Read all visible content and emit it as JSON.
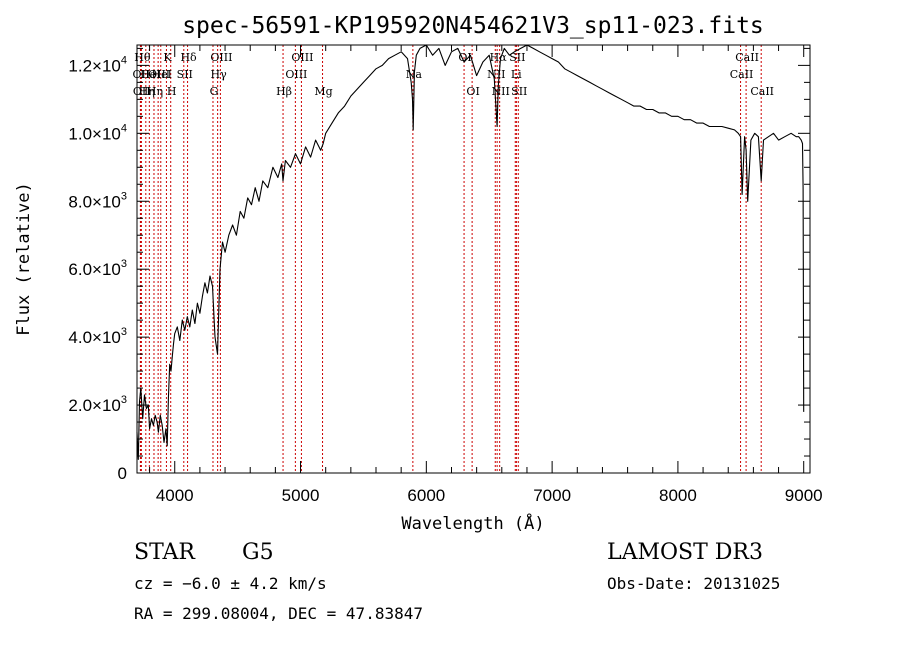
{
  "chart_data": {
    "type": "line",
    "title": "spec-56591-KP195920N454621V3_sp11-023.fits",
    "xlabel": "Wavelength (Å)",
    "ylabel": "Flux (relative)",
    "xlim": [
      3700,
      9050
    ],
    "ylim": [
      0,
      12600
    ],
    "x_ticks": [
      {
        "value": 4000,
        "label": "4000"
      },
      {
        "value": 5000,
        "label": "5000"
      },
      {
        "value": 6000,
        "label": "6000"
      },
      {
        "value": 7000,
        "label": "7000"
      },
      {
        "value": 8000,
        "label": "8000"
      },
      {
        "value": 9000,
        "label": "9000"
      }
    ],
    "y_ticks": [
      {
        "value": 0,
        "mant": "0",
        "exp": ""
      },
      {
        "value": 2000,
        "mant": "2.0×10",
        "exp": "3"
      },
      {
        "value": 4000,
        "mant": "4.0×10",
        "exp": "3"
      },
      {
        "value": 6000,
        "mant": "6.0×10",
        "exp": "3"
      },
      {
        "value": 8000,
        "mant": "8.0×10",
        "exp": "3"
      },
      {
        "value": 10000,
        "mant": "1.0×10",
        "exp": "4"
      },
      {
        "value": 12000,
        "mant": "1.2×10",
        "exp": "4"
      }
    ],
    "series": [
      {
        "name": "flux",
        "x": [
          3700,
          3710,
          3720,
          3730,
          3745,
          3760,
          3775,
          3790,
          3800,
          3815,
          3830,
          3845,
          3860,
          3870,
          3885,
          3900,
          3915,
          3930,
          3940,
          3950,
          3960,
          3970,
          3980,
          3990,
          4000,
          4020,
          4040,
          4060,
          4080,
          4100,
          4120,
          4140,
          4160,
          4180,
          4200,
          4220,
          4240,
          4260,
          4280,
          4300,
          4320,
          4340,
          4360,
          4380,
          4400,
          4430,
          4460,
          4490,
          4520,
          4550,
          4580,
          4610,
          4640,
          4670,
          4700,
          4740,
          4780,
          4820,
          4850,
          4861,
          4880,
          4920,
          4960,
          5000,
          5040,
          5080,
          5120,
          5160,
          5180,
          5200,
          5250,
          5300,
          5350,
          5400,
          5450,
          5500,
          5550,
          5600,
          5650,
          5700,
          5750,
          5800,
          5850,
          5880,
          5890,
          5896,
          5905,
          5920,
          5950,
          6000,
          6050,
          6100,
          6150,
          6200,
          6250,
          6300,
          6350,
          6400,
          6450,
          6500,
          6540,
          6555,
          6563,
          6572,
          6590,
          6620,
          6660,
          6700,
          6750,
          6800,
          6850,
          6900,
          6950,
          7000,
          7050,
          7100,
          7150,
          7200,
          7250,
          7300,
          7350,
          7400,
          7450,
          7500,
          7550,
          7600,
          7650,
          7700,
          7750,
          7800,
          7850,
          7900,
          7950,
          8000,
          8050,
          8100,
          8150,
          8200,
          8250,
          8300,
          8350,
          8400,
          8450,
          8480,
          8498,
          8510,
          8530,
          8542,
          8555,
          8580,
          8610,
          8640,
          8662,
          8680,
          8720,
          8760,
          8800,
          8850,
          8900,
          8940,
          8960,
          8980,
          8990,
          8995,
          9000
        ],
        "y": [
          1200,
          400,
          2100,
          2500,
          1600,
          2300,
          1900,
          2000,
          1300,
          1600,
          1400,
          1700,
          1500,
          1200,
          1700,
          1400,
          900,
          1300,
          800,
          2200,
          3200,
          3000,
          3400,
          3800,
          4100,
          4300,
          3900,
          4500,
          4200,
          4600,
          4300,
          4800,
          4400,
          5000,
          4700,
          5200,
          5600,
          5300,
          5800,
          5500,
          4000,
          3500,
          6000,
          6800,
          6500,
          7000,
          7300,
          7000,
          7700,
          7500,
          8100,
          7900,
          8400,
          8000,
          8600,
          8400,
          9000,
          8700,
          9100,
          8600,
          9200,
          9000,
          9400,
          9100,
          9600,
          9300,
          9800,
          9500,
          9700,
          10000,
          10300,
          10600,
          10800,
          11100,
          11300,
          11500,
          11700,
          11900,
          12000,
          12200,
          12300,
          12400,
          12200,
          11500,
          11000,
          10100,
          11800,
          12300,
          12500,
          12600,
          12300,
          12500,
          12000,
          12400,
          12500,
          12100,
          12300,
          11700,
          12100,
          12300,
          11600,
          10700,
          10200,
          11400,
          12200,
          12500,
          12300,
          12400,
          12500,
          12600,
          12500,
          12400,
          12300,
          12200,
          12100,
          11900,
          11800,
          11700,
          11600,
          11500,
          11400,
          11300,
          11200,
          11100,
          11000,
          10900,
          10800,
          10800,
          10700,
          10700,
          10600,
          10600,
          10500,
          10500,
          10400,
          10400,
          10300,
          10300,
          10200,
          10200,
          10200,
          10150,
          10100,
          10000,
          9900,
          8200,
          9900,
          9500,
          8000,
          9800,
          10000,
          9900,
          8600,
          9800,
          9900,
          10000,
          9800,
          9900,
          10000,
          9900,
          9900,
          9800,
          9700,
          8400,
          1800
        ]
      }
    ],
    "lines": [
      {
        "x": 3735,
        "label": "Hθ",
        "row": 0
      },
      {
        "x": 3727,
        "label": "OII",
        "row": 1
      },
      {
        "x": 3730,
        "label": "OII",
        "row": 2
      },
      {
        "x": 3770,
        "label": "Hη",
        "row": 2
      },
      {
        "x": 3798,
        "label": "HeI",
        "row": 1
      },
      {
        "x": 3835,
        "label": "Hη",
        "row": 2
      },
      {
        "x": 3868,
        "label": "OIII",
        "row": 1
      },
      {
        "x": 3889,
        "label": "HeI",
        "row": 1
      },
      {
        "x": 3934,
        "label": "K",
        "row": 0
      },
      {
        "x": 3968,
        "label": "H",
        "row": 2
      },
      {
        "x": 4072,
        "label": "SII",
        "row": 1
      },
      {
        "x": 4102,
        "label": "Hδ",
        "row": 0
      },
      {
        "x": 4304,
        "label": "G",
        "row": 2
      },
      {
        "x": 4341,
        "label": "Hγ",
        "row": 1
      },
      {
        "x": 4363,
        "label": "OIII",
        "row": 0
      },
      {
        "x": 4861,
        "label": "Hβ",
        "row": 2
      },
      {
        "x": 4959,
        "label": "OIII",
        "row": 1
      },
      {
        "x": 5007,
        "label": "OIII",
        "row": 0
      },
      {
        "x": 5175,
        "label": "Mg",
        "row": 2
      },
      {
        "x": 5893,
        "label": "Na",
        "row": 1
      },
      {
        "x": 6300,
        "label": "OI",
        "row": 0
      },
      {
        "x": 6364,
        "label": "OI",
        "row": 2
      },
      {
        "x": 6548,
        "label": "NII",
        "row": 1
      },
      {
        "x": 6563,
        "label": "Hα",
        "row": 0
      },
      {
        "x": 6583,
        "label": "NII",
        "row": 2
      },
      {
        "x": 6707,
        "label": "Li",
        "row": 1
      },
      {
        "x": 6716,
        "label": "SII",
        "row": 0
      },
      {
        "x": 6731,
        "label": "SII",
        "row": 2
      },
      {
        "x": 8498,
        "label": "CaII",
        "row": 1
      },
      {
        "x": 8542,
        "label": "CaII",
        "row": 0
      },
      {
        "x": 8662,
        "label": "CaII",
        "row": 2
      }
    ]
  },
  "footer": {
    "object_class": "STAR",
    "subclass": "G5",
    "survey": "LAMOST DR3",
    "cz": "cz = −6.0 ± 4.2 km/s",
    "obs_date": "Obs-Date: 20131025",
    "radec": "RA = 299.08004, DEC =  47.83847"
  }
}
